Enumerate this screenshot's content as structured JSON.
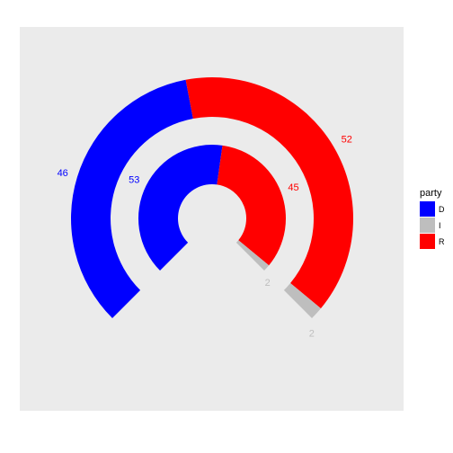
{
  "chart_data": {
    "type": "donut",
    "title": "",
    "xlabel": "",
    "ylabel": "",
    "grid": false,
    "legend_position": "right",
    "legend": {
      "title": "party",
      "entries": [
        {
          "key": "D",
          "label": "D",
          "color": "#0000ff"
        },
        {
          "key": "I",
          "label": "I",
          "color": "#bebebe"
        },
        {
          "key": "R",
          "label": "R",
          "color": "#ff0000"
        }
      ]
    },
    "colors": {
      "D": "#0000ff",
      "I": "#bebebe",
      "R": "#ff0000",
      "panel": "#ebebeb"
    },
    "rings": [
      {
        "name": "",
        "segments": [
          {
            "party": "D",
            "value": 53,
            "label": "53"
          },
          {
            "party": "R",
            "value": 45,
            "label": "45"
          },
          {
            "party": "I",
            "value": 2,
            "label": "2"
          }
        ]
      },
      {
        "name": "",
        "segments": [
          {
            "party": "D",
            "value": 46,
            "label": "46"
          },
          {
            "party": "R",
            "value": 52,
            "label": "52"
          },
          {
            "party": "I",
            "value": 2,
            "label": "2"
          }
        ]
      }
    ],
    "arc_start_degrees": 225,
    "arc_span_degrees": 270,
    "total": 100
  }
}
